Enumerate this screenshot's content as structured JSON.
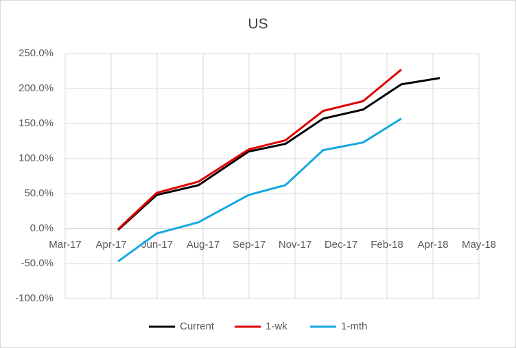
{
  "chart_data": {
    "type": "line",
    "title": "US",
    "x": [
      1.15,
      1.99,
      2.9,
      3.99,
      4.79,
      5.61,
      6.48,
      7.31,
      8.15
    ],
    "series": [
      {
        "name": "Current",
        "color": "#000000",
        "values": [
          -2,
          48,
          62,
          110,
          121,
          157,
          170,
          206,
          215
        ]
      },
      {
        "name": "1-wk",
        "color": "#e00000",
        "values": [
          -1,
          51,
          67,
          113,
          126,
          168,
          182,
          227,
          null
        ]
      },
      {
        "name": "1-mth",
        "color": "#14a8e0",
        "values": [
          -47,
          -7,
          9,
          48,
          62,
          112,
          123,
          157,
          null
        ]
      }
    ],
    "xlim": [
      0,
      9
    ],
    "xticks": [
      {
        "value": 0,
        "label": "Mar-17"
      },
      {
        "value": 1,
        "label": "Apr-17"
      },
      {
        "value": 2,
        "label": "Jun-17"
      },
      {
        "value": 3,
        "label": "Aug-17"
      },
      {
        "value": 4,
        "label": "Sep-17"
      },
      {
        "value": 5,
        "label": "Nov-17"
      },
      {
        "value": 6,
        "label": "Dec-17"
      },
      {
        "value": 7,
        "label": "Feb-18"
      },
      {
        "value": 8,
        "label": "Apr-18"
      },
      {
        "value": 9,
        "label": "May-18"
      }
    ],
    "ylim": [
      -100,
      250
    ],
    "yticks": [
      {
        "value": -100,
        "label": "-100.0%"
      },
      {
        "value": -50,
        "label": "-50.0%"
      },
      {
        "value": 0,
        "label": "0.0%"
      },
      {
        "value": 50,
        "label": "50.0%"
      },
      {
        "value": 100,
        "label": "100.0%"
      },
      {
        "value": 150,
        "label": "150.0%"
      },
      {
        "value": 200,
        "label": "200.0%"
      },
      {
        "value": 250,
        "label": "250.0%"
      }
    ],
    "grid": true,
    "legend": "bottom"
  }
}
